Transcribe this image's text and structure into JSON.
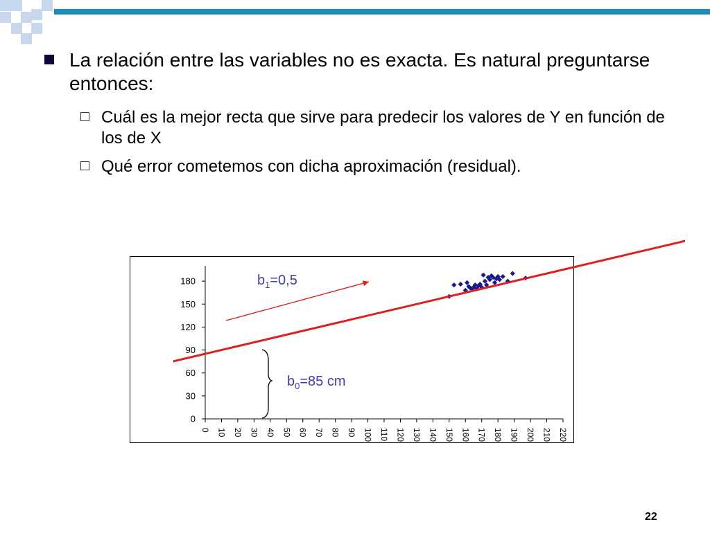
{
  "slide": {
    "bullet1": "La relación entre las variables no es exacta. Es natural preguntarse entonces:",
    "sub1": " Cuál es la mejor recta que sirve para predecir los valores de Y en función de los de X",
    "sub2": "Qué error cometemos con dicha aproximación (residual).",
    "page_number": "22"
  },
  "colors": {
    "accent": "#1a8fbf",
    "regression_line": "#e02020",
    "points": "#1a1a8c"
  },
  "chart_data": {
    "type": "scatter",
    "title": "",
    "xlabel": "",
    "ylabel": "",
    "xlim": [
      0,
      220
    ],
    "ylim": [
      0,
      200
    ],
    "x_ticks": [
      "0",
      "10",
      "20",
      "30",
      "40",
      "50",
      "60",
      "70",
      "80",
      "90",
      "100",
      "110",
      "120",
      "130",
      "140",
      "150",
      "160",
      "170",
      "180",
      "190",
      "200",
      "210",
      "220"
    ],
    "y_ticks": [
      "0",
      "30",
      "60",
      "90",
      "120",
      "150",
      "180"
    ],
    "series": [
      {
        "points": [
          [
            150,
            160
          ],
          [
            153,
            175
          ],
          [
            157,
            176
          ],
          [
            160,
            168
          ],
          [
            161,
            178
          ],
          [
            162,
            173
          ],
          [
            163,
            171
          ],
          [
            164,
            170
          ],
          [
            165,
            172
          ],
          [
            166,
            175
          ],
          [
            167,
            170
          ],
          [
            168,
            174
          ],
          [
            169,
            176
          ],
          [
            170,
            172
          ],
          [
            171,
            188
          ],
          [
            172,
            180
          ],
          [
            173,
            175
          ],
          [
            174,
            185
          ],
          [
            175,
            182
          ],
          [
            176,
            187
          ],
          [
            177,
            185
          ],
          [
            178,
            178
          ],
          [
            179,
            183
          ],
          [
            180,
            186
          ],
          [
            181,
            182
          ],
          [
            183,
            186
          ],
          [
            186,
            180
          ],
          [
            189,
            190
          ],
          [
            197,
            184
          ]
        ]
      }
    ],
    "regression_line": {
      "intercept": 85,
      "slope": 0.5
    },
    "annotations": {
      "slope_label_base": "b",
      "slope_label_sub": "1",
      "slope_label_rest": "=0,5",
      "intercept_label_base": "b",
      "intercept_label_sub": "0",
      "intercept_label_rest": "=85 cm"
    }
  }
}
